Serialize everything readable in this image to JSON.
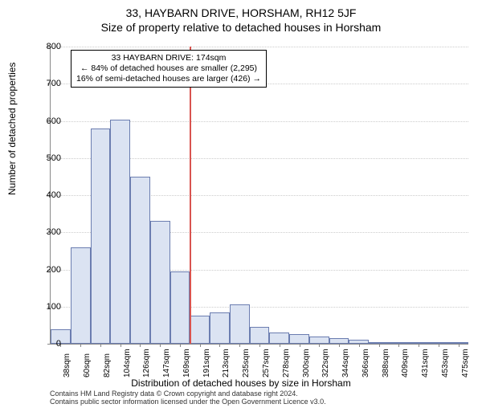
{
  "titles": {
    "line1": "33, HAYBARN DRIVE, HORSHAM, RH12 5JF",
    "line2": "Size of property relative to detached houses in Horsham"
  },
  "ylabel": "Number of detached properties",
  "xlabel": "Distribution of detached houses by size in Horsham",
  "chart": {
    "type": "histogram",
    "ylim": [
      0,
      800
    ],
    "ytick_step": 100,
    "bar_fill": "#dbe3f2",
    "bar_stroke": "#6b7db0",
    "grid_color": "#cccccc",
    "axis_color": "#888888",
    "background_color": "#ffffff",
    "ref_line_color": "#d9534f",
    "ref_bin_index": 6,
    "categories": [
      "38sqm",
      "60sqm",
      "82sqm",
      "104sqm",
      "126sqm",
      "147sqm",
      "169sqm",
      "191sqm",
      "213sqm",
      "235sqm",
      "257sqm",
      "278sqm",
      "300sqm",
      "322sqm",
      "344sqm",
      "366sqm",
      "388sqm",
      "409sqm",
      "431sqm",
      "453sqm",
      "475sqm"
    ],
    "values": [
      38,
      260,
      580,
      603,
      450,
      330,
      195,
      75,
      85,
      105,
      45,
      30,
      25,
      20,
      15,
      10,
      3,
      2,
      2,
      2,
      2
    ]
  },
  "info_box": {
    "line1": "33 HAYBARN DRIVE: 174sqm",
    "line2": "← 84% of detached houses are smaller (2,295)",
    "line3": "16% of semi-detached houses are larger (426) →"
  },
  "footer": {
    "line1": "Contains HM Land Registry data © Crown copyright and database right 2024.",
    "line2": "Contains public sector information licensed under the Open Government Licence v3.0."
  }
}
